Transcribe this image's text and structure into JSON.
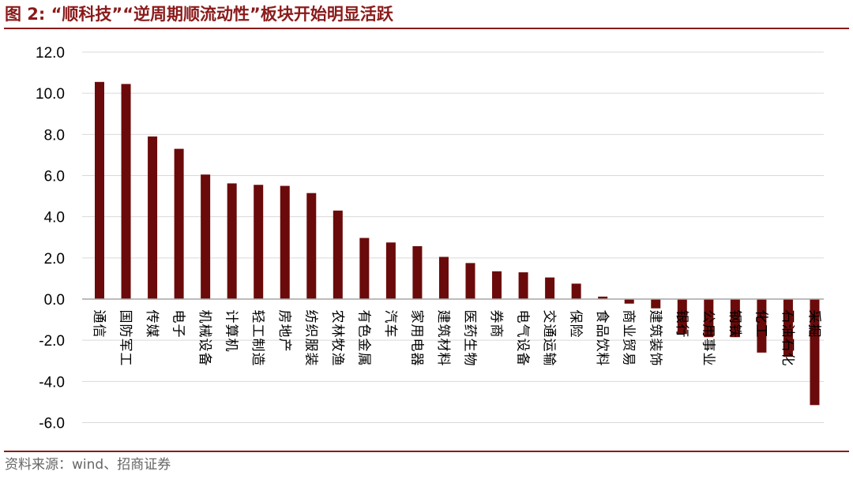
{
  "title": "图 2: “顺科技”“逆周期顺流动性”板块开始明显活跃",
  "source": "资料来源：wind、招商证券",
  "colors": {
    "bar": "#6B0A0A",
    "accent": "#8B1A1A",
    "grid": "#D9D9D9",
    "axis": "#A6A6A6"
  },
  "chart_data": {
    "type": "bar",
    "title": "图 2: “顺科技”“逆周期顺流动性”板块开始明显活跃",
    "xlabel": "",
    "ylabel": "",
    "ylim": [
      -6,
      12
    ],
    "yticks": [
      12,
      10,
      8,
      6,
      4,
      2,
      0,
      -2,
      -4,
      -6
    ],
    "ytick_labels": [
      "12.0",
      "10.0",
      "8.0",
      "6.0",
      "4.0",
      "2.0",
      "0.0",
      "-2.0",
      "-4.0",
      "-6.0"
    ],
    "grid": true,
    "legend": "none",
    "categories": [
      "通信",
      "国防军工",
      "传媒",
      "电子",
      "机械设备",
      "计算机",
      "轻工制造",
      "房地产",
      "纺织服装",
      "农林牧渔",
      "有色金属",
      "汽车",
      "家用电器",
      "建筑材料",
      "医药生物",
      "券商",
      "电气设备",
      "交通运输",
      "保险",
      "食品饮料",
      "商业贸易",
      "建筑装饰",
      "银行",
      "公用事业",
      "钢铁",
      "化工",
      "石油石化",
      "采掘"
    ],
    "values": [
      10.55,
      10.45,
      7.9,
      7.3,
      6.05,
      5.62,
      5.55,
      5.5,
      5.15,
      4.3,
      2.97,
      2.75,
      2.57,
      2.05,
      1.75,
      1.35,
      1.3,
      1.05,
      0.75,
      0.12,
      -0.22,
      -0.45,
      -1.7,
      -1.85,
      -1.85,
      -2.6,
      -2.8,
      -5.15
    ]
  }
}
